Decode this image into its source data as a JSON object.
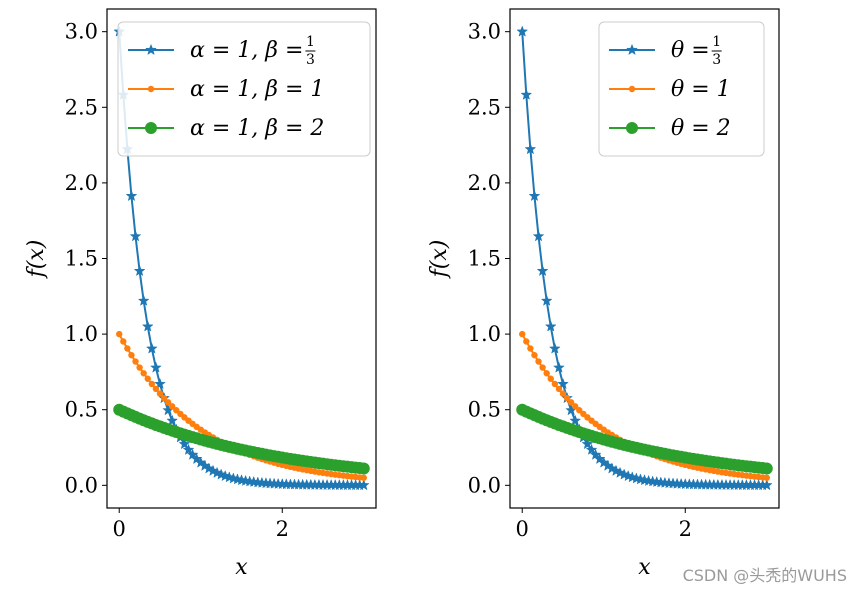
{
  "watermark": "CSDN @头秃的WUHS",
  "colors": {
    "series1": "#1f77b4",
    "series2": "#ff7f0e",
    "series3": "#2ca02c"
  },
  "chart_data": [
    {
      "type": "line",
      "title": "",
      "xlabel": "x",
      "ylabel": "f(x)",
      "xlim": [
        -0.15,
        3.15
      ],
      "ylim": [
        -0.15,
        3.15
      ],
      "xticks": [
        0,
        2
      ],
      "yticks": [
        0.0,
        0.5,
        1.0,
        1.5,
        2.0,
        2.5,
        3.0
      ],
      "xtick_labels": [
        "0",
        "2"
      ],
      "ytick_labels": [
        "0.0",
        "0.5",
        "1.0",
        "1.5",
        "2.0",
        "2.5",
        "3.0"
      ],
      "legend_position": "top-right",
      "x_range": [
        0,
        3
      ],
      "n_points": 61,
      "series": [
        {
          "name": "α = 1, β = 1/3",
          "label_main": "α = 1, β = ",
          "label_frac_num": "1",
          "label_frac_den": "3",
          "marker": "star",
          "color": "#1f77b4",
          "rate": 3
        },
        {
          "name": "α = 1, β = 1",
          "label_main": "α = 1, β = 1",
          "marker": "point",
          "color": "#ff7f0e",
          "rate": 1
        },
        {
          "name": "α = 1, β = 2",
          "label_main": "α = 1, β = 2",
          "marker": "circle",
          "color": "#2ca02c",
          "rate": 0.5
        }
      ]
    },
    {
      "type": "line",
      "title": "",
      "xlabel": "x",
      "ylabel": "f(x)",
      "xlim": [
        -0.15,
        3.15
      ],
      "ylim": [
        -0.15,
        3.15
      ],
      "xticks": [
        0,
        2
      ],
      "yticks": [
        0.0,
        0.5,
        1.0,
        1.5,
        2.0,
        2.5,
        3.0
      ],
      "xtick_labels": [
        "0",
        "2"
      ],
      "ytick_labels": [
        "0.0",
        "0.5",
        "1.0",
        "1.5",
        "2.0",
        "2.5",
        "3.0"
      ],
      "legend_position": "top-right",
      "x_range": [
        0,
        3
      ],
      "n_points": 61,
      "series": [
        {
          "name": "θ = 1/3",
          "label_main": "θ = ",
          "label_frac_num": "1",
          "label_frac_den": "3",
          "marker": "star",
          "color": "#1f77b4",
          "rate": 3
        },
        {
          "name": "θ = 1",
          "label_main": "θ = 1",
          "marker": "point",
          "color": "#ff7f0e",
          "rate": 1
        },
        {
          "name": "θ = 2",
          "label_main": "θ = 2",
          "marker": "circle",
          "color": "#2ca02c",
          "rate": 0.5
        }
      ]
    }
  ]
}
